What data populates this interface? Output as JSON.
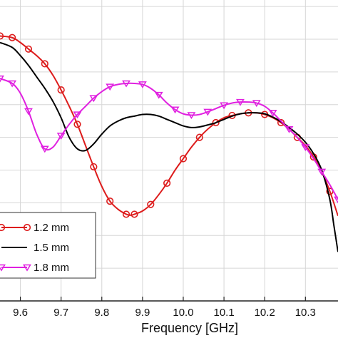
{
  "chart_data": {
    "type": "line",
    "title": "",
    "xlabel": "Frequency [GHz]",
    "ylabel": "",
    "xlim": [
      9.55,
      10.38
    ],
    "ylim": [
      0,
      9.2
    ],
    "grid": true,
    "legend_position": "bottom-left",
    "x_ticks": [
      {
        "value": 9.6,
        "label": "9.6"
      },
      {
        "value": 9.7,
        "label": "9.7"
      },
      {
        "value": 9.8,
        "label": "9.8"
      },
      {
        "value": 9.9,
        "label": "9.9"
      },
      {
        "value": 10.0,
        "label": "10.0"
      },
      {
        "value": 10.1,
        "label": "10.1"
      },
      {
        "value": 10.2,
        "label": "10.2"
      },
      {
        "value": 10.3,
        "label": "10.3"
      }
    ],
    "y_grid_values": [
      1,
      2,
      3,
      4,
      5,
      6,
      7,
      8,
      9
    ],
    "series": [
      {
        "name": "1.2 mm",
        "color": "#dd1c1c",
        "marker": "circle",
        "x": [
          9.55,
          9.58,
          9.6,
          9.62,
          9.64,
          9.66,
          9.68,
          9.7,
          9.72,
          9.74,
          9.76,
          9.78,
          9.8,
          9.82,
          9.84,
          9.86,
          9.87,
          9.88,
          9.9,
          9.92,
          9.94,
          9.96,
          9.98,
          10.0,
          10.02,
          10.04,
          10.06,
          10.08,
          10.1,
          10.12,
          10.14,
          10.16,
          10.18,
          10.2,
          10.22,
          10.24,
          10.26,
          10.28,
          10.3,
          10.32,
          10.34,
          10.36,
          10.38
        ],
        "y": [
          8.1,
          8.05,
          7.9,
          7.7,
          7.5,
          7.25,
          6.9,
          6.45,
          5.95,
          5.4,
          4.75,
          4.1,
          3.5,
          3.05,
          2.8,
          2.65,
          2.62,
          2.65,
          2.75,
          2.95,
          3.25,
          3.6,
          4.0,
          4.35,
          4.7,
          5.0,
          5.25,
          5.45,
          5.6,
          5.67,
          5.72,
          5.75,
          5.75,
          5.7,
          5.6,
          5.45,
          5.25,
          5.0,
          4.75,
          4.4,
          3.95,
          3.35,
          2.6
        ]
      },
      {
        "name": "1.5 mm",
        "color": "#000000",
        "marker": "none",
        "x": [
          9.55,
          9.58,
          9.6,
          9.62,
          9.64,
          9.66,
          9.68,
          9.7,
          9.72,
          9.74,
          9.76,
          9.78,
          9.8,
          9.82,
          9.84,
          9.86,
          9.88,
          9.9,
          9.92,
          9.94,
          9.96,
          9.98,
          10.0,
          10.02,
          10.04,
          10.06,
          10.08,
          10.1,
          10.12,
          10.14,
          10.16,
          10.18,
          10.2,
          10.22,
          10.24,
          10.26,
          10.28,
          10.3,
          10.32,
          10.34,
          10.36,
          10.37,
          10.38
        ],
        "y": [
          7.9,
          7.75,
          7.5,
          7.2,
          6.85,
          6.5,
          6.1,
          5.6,
          5.0,
          4.65,
          4.6,
          4.8,
          5.1,
          5.35,
          5.5,
          5.6,
          5.65,
          5.7,
          5.7,
          5.65,
          5.55,
          5.45,
          5.35,
          5.3,
          5.32,
          5.38,
          5.45,
          5.55,
          5.65,
          5.72,
          5.75,
          5.75,
          5.72,
          5.62,
          5.48,
          5.3,
          5.1,
          4.85,
          4.5,
          4.0,
          3.1,
          2.3,
          1.5
        ]
      },
      {
        "name": "1.8 mm",
        "color": "#e020e0",
        "marker": "triangle-down",
        "x": [
          9.55,
          9.58,
          9.6,
          9.62,
          9.64,
          9.66,
          9.68,
          9.7,
          9.72,
          9.74,
          9.76,
          9.78,
          9.8,
          9.82,
          9.84,
          9.86,
          9.88,
          9.9,
          9.92,
          9.94,
          9.96,
          9.98,
          10.0,
          10.02,
          10.04,
          10.06,
          10.08,
          10.1,
          10.12,
          10.14,
          10.16,
          10.18,
          10.2,
          10.22,
          10.24,
          10.26,
          10.28,
          10.3,
          10.32,
          10.34,
          10.36,
          10.38
        ],
        "y": [
          6.8,
          6.65,
          6.35,
          5.8,
          5.1,
          4.65,
          4.7,
          5.05,
          5.4,
          5.7,
          5.95,
          6.2,
          6.4,
          6.55,
          6.62,
          6.65,
          6.65,
          6.62,
          6.5,
          6.3,
          6.05,
          5.85,
          5.72,
          5.68,
          5.7,
          5.78,
          5.88,
          5.98,
          6.05,
          6.08,
          6.08,
          6.05,
          5.95,
          5.75,
          5.5,
          5.25,
          5.0,
          4.7,
          4.35,
          3.95,
          3.55,
          3.1
        ]
      }
    ]
  }
}
